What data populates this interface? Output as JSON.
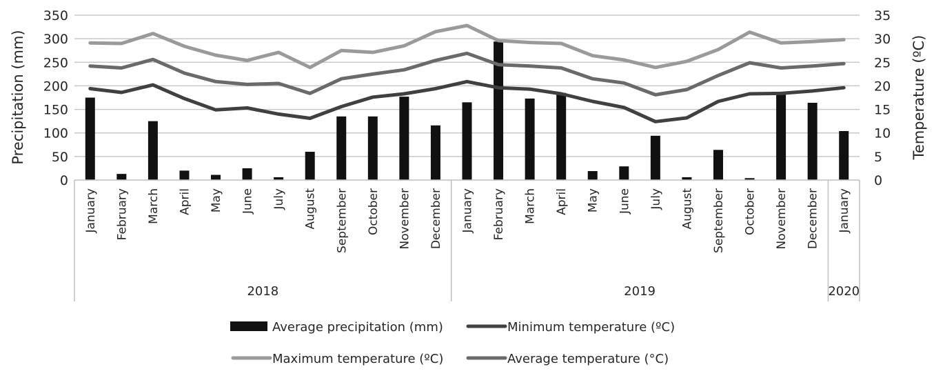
{
  "chart_data": {
    "type": "bar",
    "title": "",
    "categories": [
      "January",
      "February",
      "March",
      "April",
      "May",
      "June",
      "July",
      "August",
      "September",
      "October",
      "November",
      "December",
      "January",
      "February",
      "March",
      "April",
      "May",
      "June",
      "July",
      "August",
      "September",
      "October",
      "November",
      "December",
      "January"
    ],
    "groups": [
      {
        "label": "2018",
        "count": 12
      },
      {
        "label": "2019",
        "count": 12
      },
      {
        "label": "2020",
        "count": 1
      }
    ],
    "ylabel": "Precipitation  (mm)",
    "ylabel_right": "Temperature (ºC)",
    "ylim": [
      0,
      350
    ],
    "ylim_right": [
      0,
      35
    ],
    "yticks": [
      0,
      50,
      100,
      150,
      200,
      250,
      300,
      350
    ],
    "yticks_right": [
      0,
      5,
      10,
      15,
      20,
      25,
      30,
      35
    ],
    "grid": true,
    "legend_position": "bottom",
    "series": [
      {
        "name": "Average precipitation (mm)",
        "kind": "bar",
        "axis": "left",
        "color": "#111111",
        "values": [
          175,
          13,
          125,
          20,
          11,
          25,
          6,
          60,
          135,
          135,
          177,
          116,
          165,
          294,
          173,
          185,
          19,
          29,
          94,
          6,
          64,
          4,
          186,
          164,
          104
        ]
      },
      {
        "name": "Minimum temperature (ºC)",
        "kind": "line",
        "axis": "right",
        "color": "#404040",
        "values": [
          19.4,
          18.6,
          20.2,
          17.3,
          14.9,
          15.3,
          14.0,
          13.1,
          15.6,
          17.6,
          18.3,
          19.4,
          20.9,
          19.6,
          19.3,
          18.3,
          16.7,
          15.4,
          12.4,
          13.2,
          16.7,
          18.3,
          18.4,
          18.9,
          19.6
        ]
      },
      {
        "name": "Maximum temperature (ºC)",
        "kind": "line",
        "axis": "right",
        "color": "#9a9a9a",
        "values": [
          29.1,
          29.0,
          31.1,
          28.4,
          26.5,
          25.4,
          27.1,
          23.9,
          27.5,
          27.1,
          28.5,
          31.5,
          32.8,
          29.6,
          29.2,
          29.0,
          26.4,
          25.5,
          23.9,
          25.2,
          27.7,
          31.4,
          29.1,
          29.4,
          29.8
        ]
      },
      {
        "name": "Average temperature (°C)",
        "kind": "line",
        "axis": "right",
        "color": "#6a6a6a",
        "values": [
          24.2,
          23.8,
          25.6,
          22.7,
          20.9,
          20.3,
          20.5,
          18.4,
          21.5,
          22.5,
          23.4,
          25.4,
          26.9,
          24.5,
          24.2,
          23.8,
          21.5,
          20.6,
          18.1,
          19.2,
          22.2,
          24.9,
          23.8,
          24.2,
          24.7
        ]
      }
    ],
    "legend": [
      {
        "label": "Average precipitation (mm)",
        "marker": "box",
        "color": "#111111"
      },
      {
        "label": "Minimum temperature (ºC)",
        "marker": "line",
        "color": "#404040"
      },
      {
        "label": "Maximum temperature (ºC)",
        "marker": "line",
        "color": "#9a9a9a"
      },
      {
        "label": "Average temperature (°C)",
        "marker": "line",
        "color": "#6a6a6a"
      }
    ]
  }
}
